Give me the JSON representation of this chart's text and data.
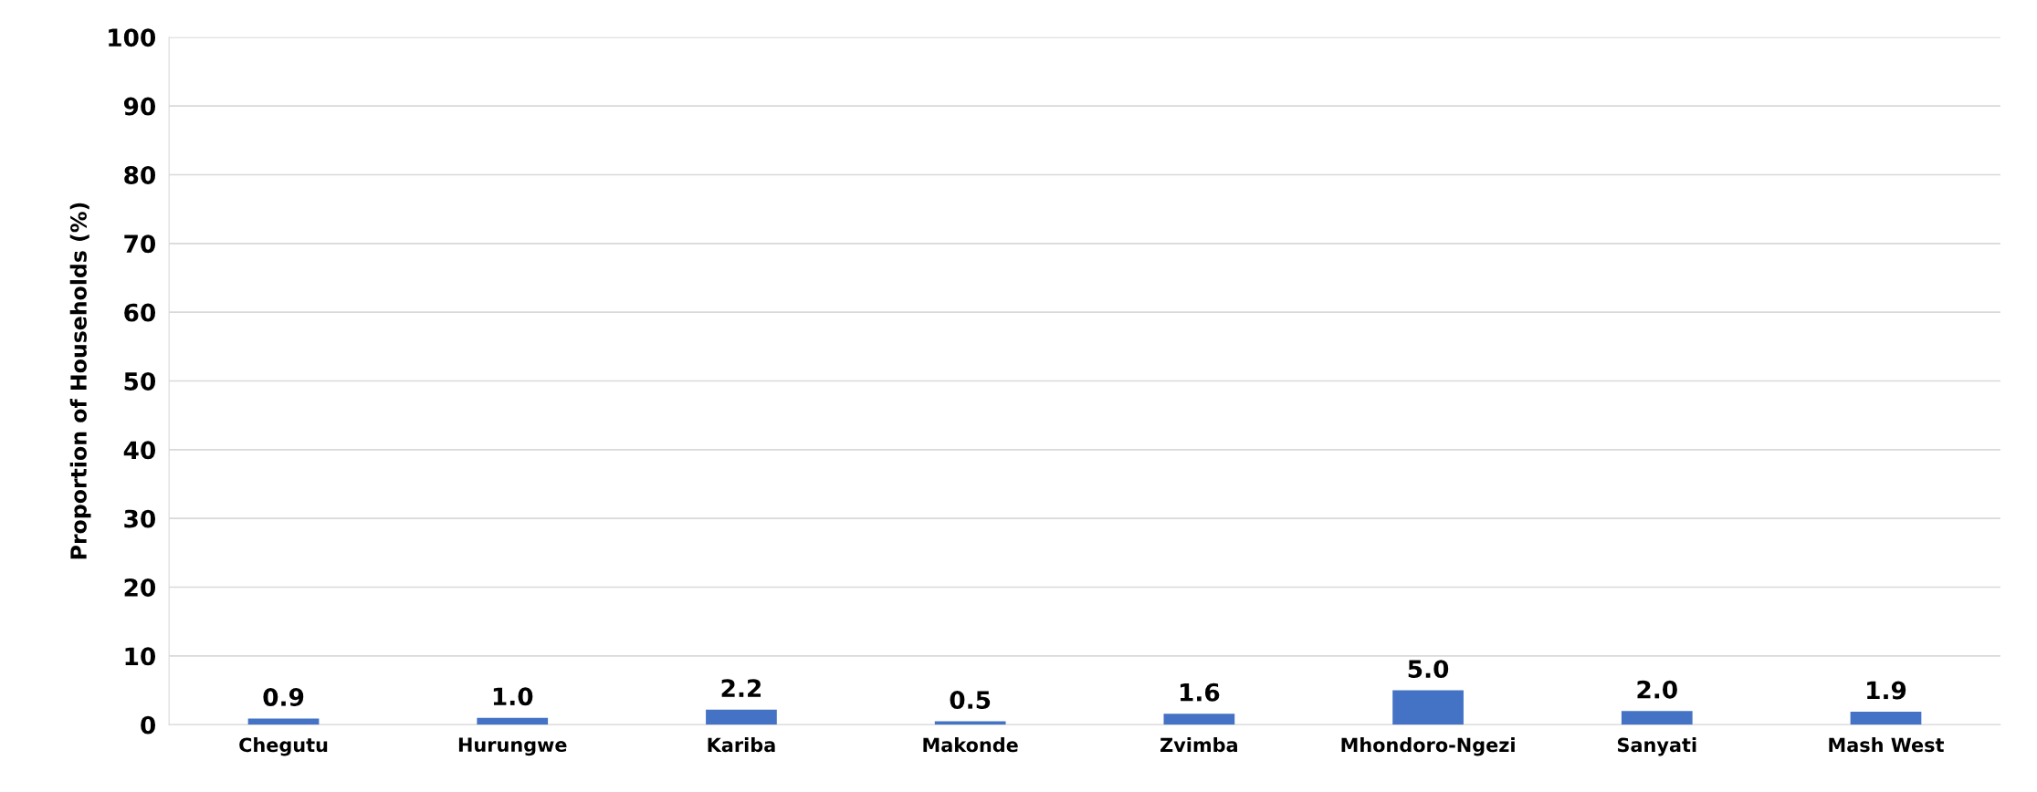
{
  "chart_data": {
    "type": "bar",
    "ylabel": "Proportion of Households (%)",
    "categories": [
      "Chegutu",
      "Hurungwe",
      "Kariba",
      "Makonde",
      "Zvimba",
      "Mhondoro-Ngezi",
      "Sanyati",
      "Mash West"
    ],
    "values": [
      0.9,
      1.0,
      2.2,
      0.5,
      1.6,
      5.0,
      2.0,
      1.9
    ],
    "color": "#4472c4",
    "ylim": [
      0,
      100
    ],
    "yticks": [
      0,
      10,
      20,
      30,
      40,
      50,
      60,
      70,
      80,
      90,
      100
    ],
    "value_labels": [
      "0.9",
      "1.0",
      "2.2",
      "0.5",
      "1.6",
      "5.0",
      "2.0",
      "1.9"
    ],
    "grid": "y"
  }
}
